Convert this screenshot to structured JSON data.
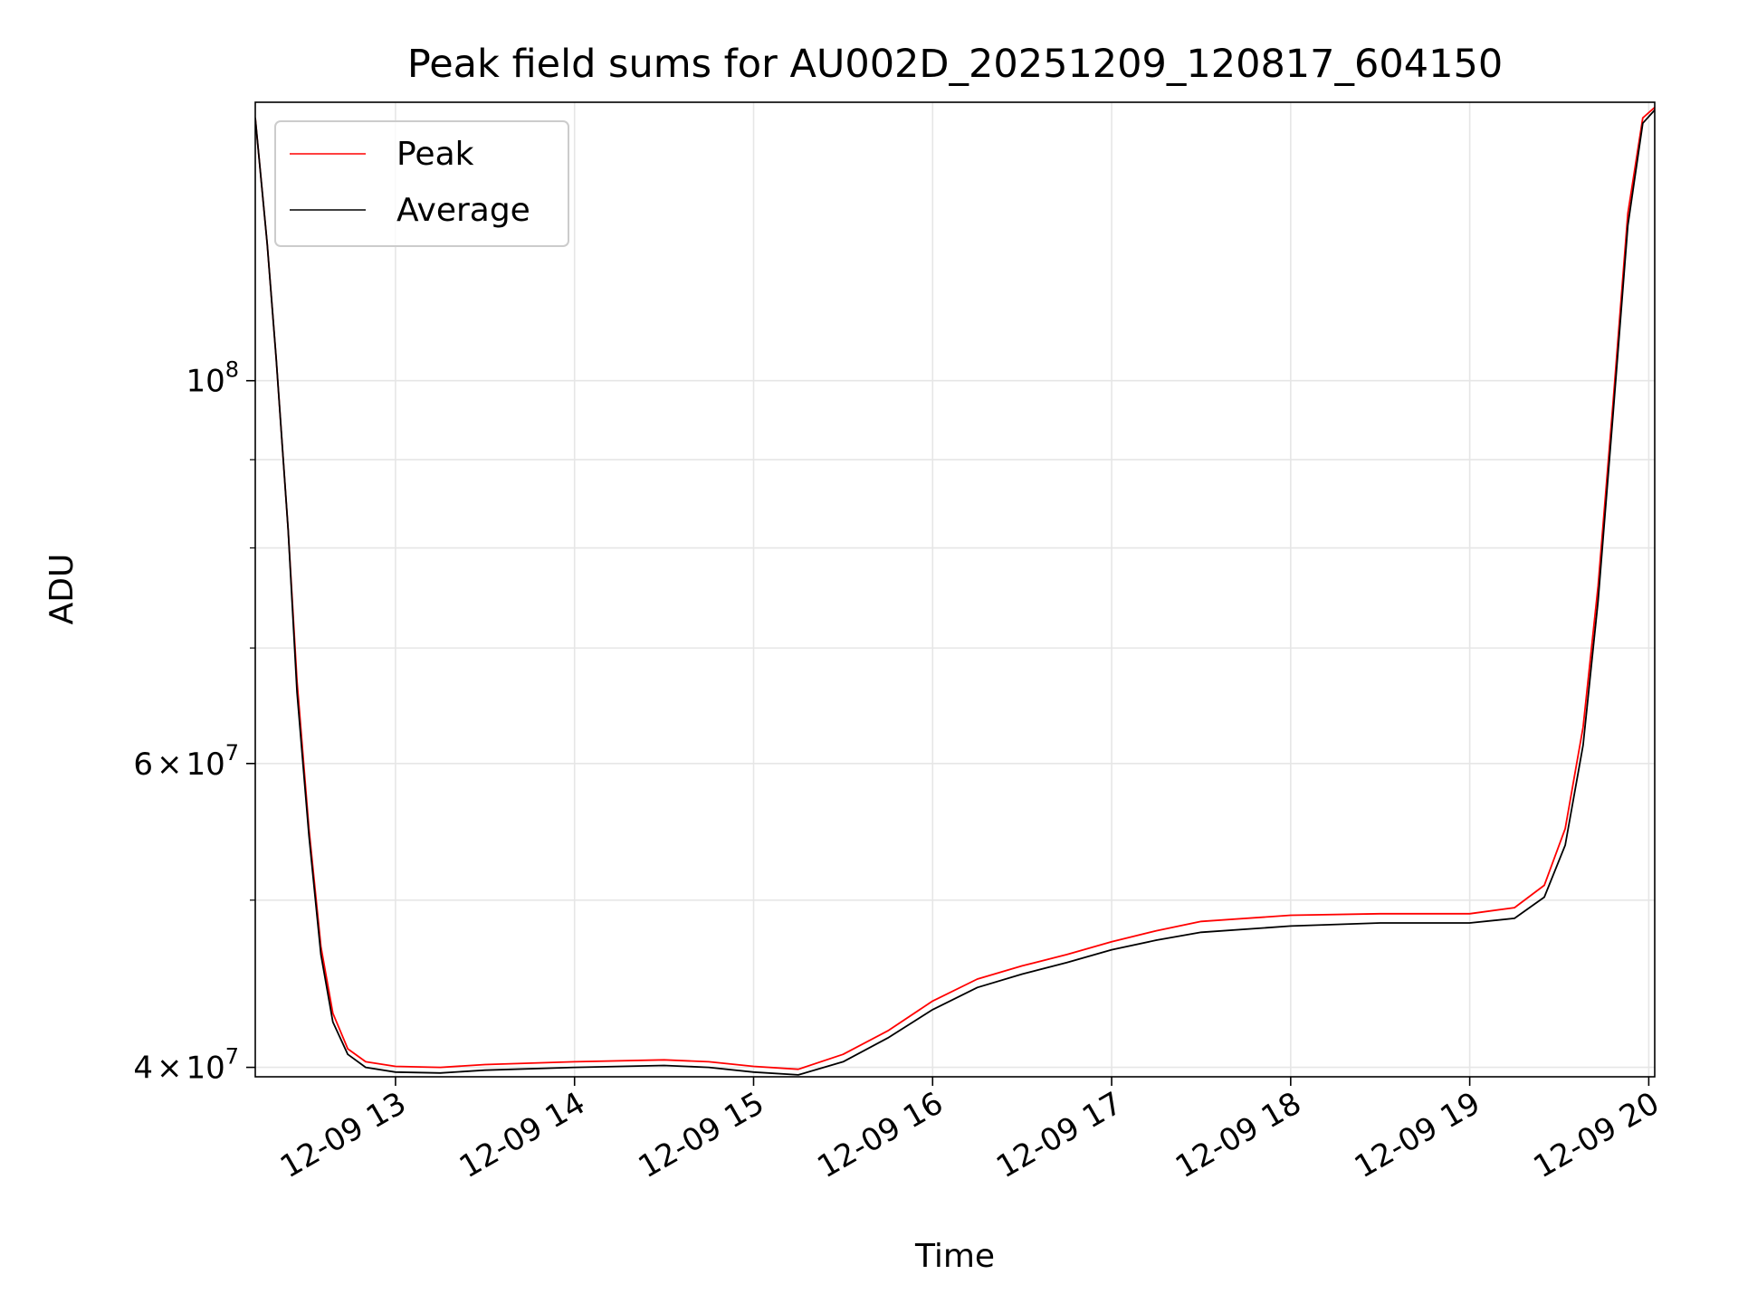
{
  "chart_data": {
    "type": "line",
    "title": "Peak field sums for AU002D_20251209_120817_604150",
    "xlabel": "Time",
    "ylabel": "ADU",
    "x_range": [
      "2025-12-09 12:13",
      "2025-12-09 20:02"
    ],
    "ylim": [
      39500000,
      145000000
    ],
    "y_scale": "log",
    "grid": true,
    "legend_position": "top-left",
    "x_ticks": [
      {
        "value": "2025-12-09 13:00",
        "label": "12-09 13"
      },
      {
        "value": "2025-12-09 14:00",
        "label": "12-09 14"
      },
      {
        "value": "2025-12-09 15:00",
        "label": "12-09 15"
      },
      {
        "value": "2025-12-09 16:00",
        "label": "12-09 16"
      },
      {
        "value": "2025-12-09 17:00",
        "label": "12-09 17"
      },
      {
        "value": "2025-12-09 18:00",
        "label": "12-09 18"
      },
      {
        "value": "2025-12-09 19:00",
        "label": "12-09 19"
      },
      {
        "value": "2025-12-09 20:00",
        "label": "12-09 20"
      }
    ],
    "y_major_ticks": [
      {
        "value": 40000000,
        "base": "4",
        "mult": "×",
        "pow": "10",
        "exp": "7"
      },
      {
        "value": 60000000,
        "base": "6",
        "mult": "×",
        "pow": "10",
        "exp": "7"
      },
      {
        "value": 100000000,
        "base": "",
        "mult": "",
        "pow": "10",
        "exp": "8"
      }
    ],
    "y_minor_ticks": [
      50000000,
      70000000,
      80000000,
      90000000
    ],
    "series": [
      {
        "name": "Peak",
        "color": "#ff0000",
        "points": [
          [
            "2025-12-09 12:13",
            142000000
          ],
          [
            "2025-12-09 12:17",
            120000000
          ],
          [
            "2025-12-09 12:20",
            103000000
          ],
          [
            "2025-12-09 12:24",
            82000000
          ],
          [
            "2025-12-09 12:27",
            67000000
          ],
          [
            "2025-12-09 12:31",
            55000000
          ],
          [
            "2025-12-09 12:35",
            47000000
          ],
          [
            "2025-12-09 12:39",
            43000000
          ],
          [
            "2025-12-09 12:44",
            41000000
          ],
          [
            "2025-12-09 12:50",
            40300000
          ],
          [
            "2025-12-09 13:00",
            40050000
          ],
          [
            "2025-12-09 13:15",
            40000000
          ],
          [
            "2025-12-09 13:30",
            40150000
          ],
          [
            "2025-12-09 14:00",
            40300000
          ],
          [
            "2025-12-09 14:30",
            40400000
          ],
          [
            "2025-12-09 14:45",
            40300000
          ],
          [
            "2025-12-09 15:00",
            40050000
          ],
          [
            "2025-12-09 15:15",
            39900000
          ],
          [
            "2025-12-09 15:30",
            40700000
          ],
          [
            "2025-12-09 15:45",
            42000000
          ],
          [
            "2025-12-09 16:00",
            43700000
          ],
          [
            "2025-12-09 16:15",
            45000000
          ],
          [
            "2025-12-09 16:30",
            45800000
          ],
          [
            "2025-12-09 16:45",
            46500000
          ],
          [
            "2025-12-09 17:00",
            47300000
          ],
          [
            "2025-12-09 17:15",
            48000000
          ],
          [
            "2025-12-09 17:30",
            48600000
          ],
          [
            "2025-12-09 18:00",
            49000000
          ],
          [
            "2025-12-09 18:30",
            49100000
          ],
          [
            "2025-12-09 19:00",
            49100000
          ],
          [
            "2025-12-09 19:15",
            49500000
          ],
          [
            "2025-12-09 19:25",
            51000000
          ],
          [
            "2025-12-09 19:32",
            55000000
          ],
          [
            "2025-12-09 19:38",
            63000000
          ],
          [
            "2025-12-09 19:43",
            76000000
          ],
          [
            "2025-12-09 19:48",
            97000000
          ],
          [
            "2025-12-09 19:53",
            125000000
          ],
          [
            "2025-12-09 19:58",
            142000000
          ],
          [
            "2025-12-09 20:02",
            144000000
          ]
        ]
      },
      {
        "name": "Average",
        "color": "#000000",
        "points": [
          [
            "2025-12-09 12:13",
            142000000
          ],
          [
            "2025-12-09 12:17",
            120000000
          ],
          [
            "2025-12-09 12:20",
            103000000
          ],
          [
            "2025-12-09 12:24",
            82000000
          ],
          [
            "2025-12-09 12:27",
            66000000
          ],
          [
            "2025-12-09 12:31",
            54500000
          ],
          [
            "2025-12-09 12:35",
            46500000
          ],
          [
            "2025-12-09 12:39",
            42500000
          ],
          [
            "2025-12-09 12:44",
            40700000
          ],
          [
            "2025-12-09 12:50",
            40000000
          ],
          [
            "2025-12-09 13:00",
            39750000
          ],
          [
            "2025-12-09 13:15",
            39700000
          ],
          [
            "2025-12-09 13:30",
            39850000
          ],
          [
            "2025-12-09 14:00",
            40000000
          ],
          [
            "2025-12-09 14:30",
            40100000
          ],
          [
            "2025-12-09 14:45",
            40000000
          ],
          [
            "2025-12-09 15:00",
            39750000
          ],
          [
            "2025-12-09 15:15",
            39600000
          ],
          [
            "2025-12-09 15:30",
            40300000
          ],
          [
            "2025-12-09 15:45",
            41600000
          ],
          [
            "2025-12-09 16:00",
            43200000
          ],
          [
            "2025-12-09 16:15",
            44500000
          ],
          [
            "2025-12-09 16:30",
            45300000
          ],
          [
            "2025-12-09 16:45",
            46000000
          ],
          [
            "2025-12-09 17:00",
            46800000
          ],
          [
            "2025-12-09 17:15",
            47400000
          ],
          [
            "2025-12-09 17:30",
            47900000
          ],
          [
            "2025-12-09 18:00",
            48300000
          ],
          [
            "2025-12-09 18:30",
            48500000
          ],
          [
            "2025-12-09 19:00",
            48500000
          ],
          [
            "2025-12-09 19:15",
            48800000
          ],
          [
            "2025-12-09 19:25",
            50200000
          ],
          [
            "2025-12-09 19:32",
            53800000
          ],
          [
            "2025-12-09 19:38",
            61500000
          ],
          [
            "2025-12-09 19:43",
            74500000
          ],
          [
            "2025-12-09 19:48",
            95500000
          ],
          [
            "2025-12-09 19:53",
            123000000
          ],
          [
            "2025-12-09 19:58",
            141000000
          ],
          [
            "2025-12-09 20:02",
            143500000
          ]
        ]
      }
    ]
  }
}
